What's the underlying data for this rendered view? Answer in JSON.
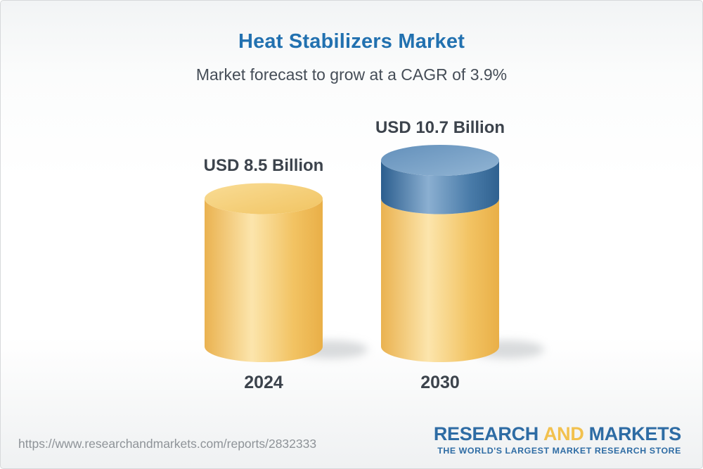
{
  "header": {
    "title": "Heat Stabilizers Market",
    "subtitle": "Market forecast to grow at a CAGR of 3.9%"
  },
  "chart_data": {
    "type": "bar",
    "variant": "3d-cylinder",
    "categories": [
      "2024",
      "2030"
    ],
    "values": [
      8.5,
      10.7
    ],
    "value_labels": [
      "USD 8.5 Billion",
      "USD 10.7 Billion"
    ],
    "unit": "USD Billion",
    "cagr_pct": 3.9,
    "ylim": [
      0,
      10.7
    ],
    "legend": "none",
    "grid": false,
    "colors": {
      "base_segment": "#F3C566",
      "growth_segment": "#5484B1",
      "label_text": "#3C434C"
    }
  },
  "footer": {
    "url": "https://www.researchandmarkets.com/reports/2832333",
    "logo": {
      "word1": "RESEARCH",
      "word2": "AND",
      "word3": "MARKETS",
      "tagline": "THE WORLD'S LARGEST MARKET RESEARCH STORE",
      "blue": "#2E6CA4",
      "gold": "#F2C14E"
    }
  }
}
